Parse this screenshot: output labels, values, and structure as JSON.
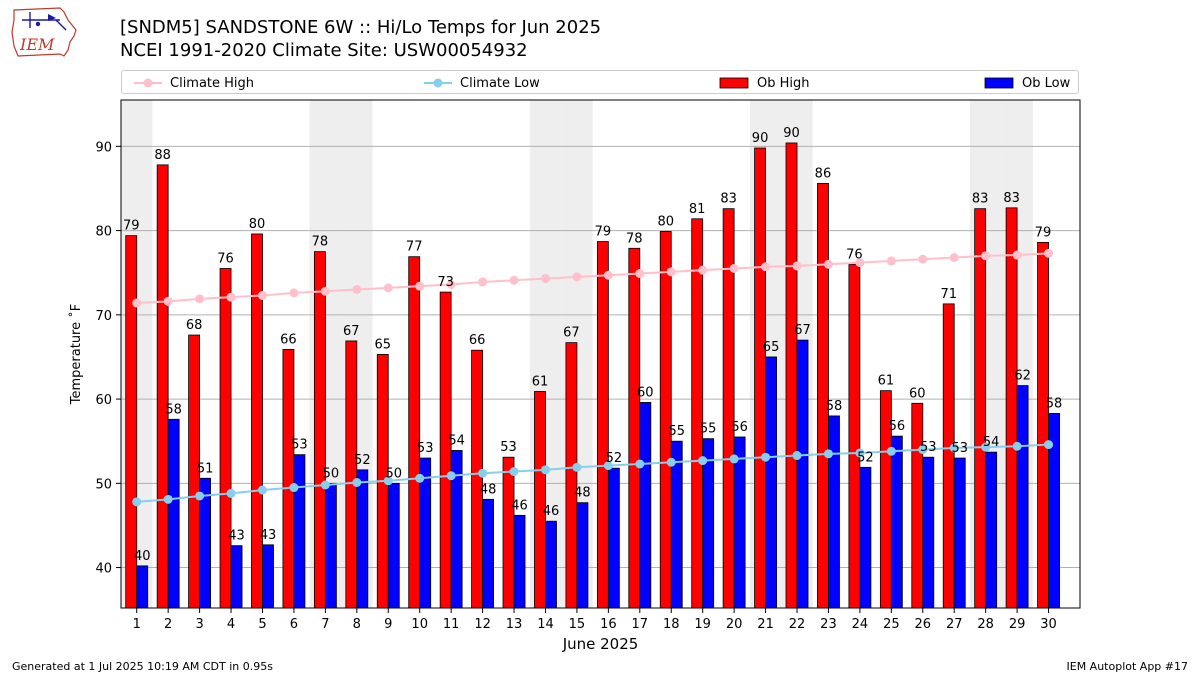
{
  "header": {
    "title_line1": "[SNDM5] SANDSTONE 6W :: Hi/Lo Temps for Jun 2025",
    "title_line2": "NCEI 1991-2020 Climate Site: USW00054932"
  },
  "logo": {
    "text": "IEM"
  },
  "legend": {
    "items": [
      {
        "label": "Climate High",
        "color": "#ffc0cb"
      },
      {
        "label": "Climate Low",
        "color": "#87ceeb"
      },
      {
        "label": "Ob High",
        "color": "#ff0000"
      },
      {
        "label": "Ob Low",
        "color": "#0000ff"
      }
    ]
  },
  "footer": {
    "left": "Generated at 1 Jul 2025 10:19 AM CDT in 0.95s",
    "right": "IEM Autoplot App #17"
  },
  "chart_data": {
    "type": "bar",
    "xlabel": "June 2025",
    "ylabel": "Temperature ˚F",
    "ylim": [
      35.2,
      95.5
    ],
    "yticks": [
      40,
      50,
      60,
      70,
      80,
      90
    ],
    "grid": true,
    "legend_position": "top",
    "x": [
      1,
      2,
      3,
      4,
      5,
      6,
      7,
      8,
      9,
      10,
      11,
      12,
      13,
      14,
      15,
      16,
      17,
      18,
      19,
      20,
      21,
      22,
      23,
      24,
      25,
      26,
      27,
      28,
      29,
      30
    ],
    "weekend_days": [
      1,
      7,
      8,
      14,
      15,
      21,
      22,
      28,
      29
    ],
    "series": [
      {
        "name": "Ob High",
        "kind": "bar",
        "color": "#ff0000",
        "values": [
          79.4,
          87.8,
          67.6,
          75.5,
          79.6,
          65.9,
          77.5,
          66.9,
          65.3,
          76.9,
          72.7,
          65.8,
          53.1,
          60.9,
          66.7,
          78.7,
          77.9,
          79.9,
          81.4,
          82.6,
          89.8,
          90.4,
          85.6,
          76.0,
          61.0,
          59.5,
          71.3,
          82.6,
          82.7,
          78.6
        ]
      },
      {
        "name": "Ob Low",
        "kind": "bar",
        "color": "#0000ff",
        "values": [
          40.2,
          57.6,
          50.6,
          42.6,
          42.7,
          53.4,
          50.0,
          51.6,
          50.0,
          53.0,
          53.9,
          48.1,
          46.2,
          45.5,
          47.7,
          51.8,
          59.6,
          55.0,
          55.3,
          55.5,
          65.0,
          67.0,
          58.0,
          51.9,
          55.6,
          53.1,
          53.0,
          53.7,
          61.6,
          58.3
        ]
      },
      {
        "name": "Climate High",
        "kind": "line",
        "color": "#ffc0cb",
        "values": [
          71.4,
          71.6,
          71.9,
          72.1,
          72.3,
          72.6,
          72.8,
          73.0,
          73.2,
          73.4,
          73.6,
          73.9,
          74.1,
          74.3,
          74.5,
          74.7,
          74.9,
          75.1,
          75.3,
          75.5,
          75.7,
          75.8,
          76.0,
          76.2,
          76.4,
          76.6,
          76.8,
          77.0,
          77.1,
          77.3
        ]
      },
      {
        "name": "Climate Low",
        "kind": "line",
        "color": "#87ceeb",
        "values": [
          47.8,
          48.1,
          48.5,
          48.8,
          49.2,
          49.5,
          49.8,
          50.1,
          50.3,
          50.6,
          50.9,
          51.2,
          51.4,
          51.6,
          51.9,
          52.1,
          52.3,
          52.5,
          52.7,
          52.9,
          53.1,
          53.3,
          53.5,
          53.6,
          53.8,
          54.0,
          54.2,
          54.3,
          54.4,
          54.6
        ]
      }
    ],
    "ob_high_labels": [
      "79",
      "88",
      "68",
      "76",
      "80",
      "66",
      "78",
      "67",
      "65",
      "77",
      "73",
      "66",
      "53",
      "61",
      "67",
      "79",
      "78",
      "80",
      "81",
      "83",
      "90",
      "90",
      "86",
      "76",
      "61",
      "60",
      "71",
      "83",
      "83",
      "79"
    ],
    "ob_low_labels": [
      "40",
      "58",
      "51",
      "43",
      "43",
      "53",
      "50",
      "52",
      "50",
      "53",
      "54",
      "48",
      "46",
      "46",
      "48",
      "52",
      "60",
      "55",
      "55",
      "56",
      "65",
      "67",
      "58",
      "52",
      "56",
      "53",
      "53",
      "54",
      "62",
      "58"
    ]
  }
}
